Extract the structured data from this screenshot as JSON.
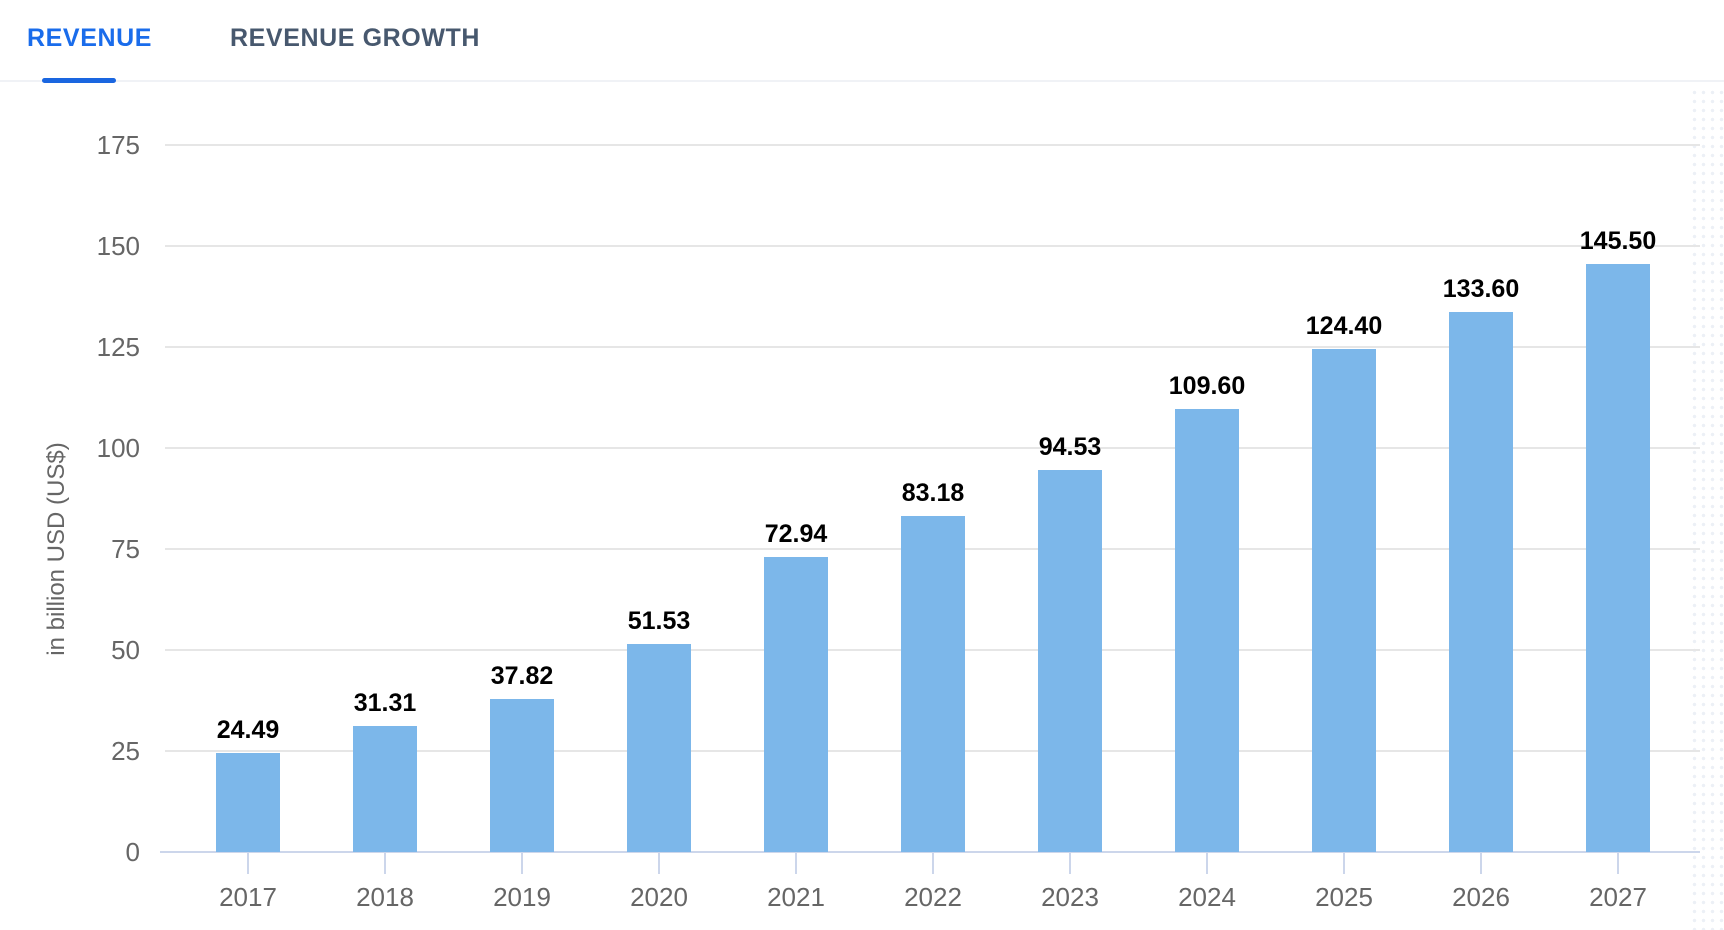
{
  "tabs": [
    {
      "label": "REVENUE",
      "active": true
    },
    {
      "label": "REVENUE GROWTH",
      "active": false
    }
  ],
  "chart_data": {
    "type": "bar",
    "categories": [
      "2017",
      "2018",
      "2019",
      "2020",
      "2021",
      "2022",
      "2023",
      "2024",
      "2025",
      "2026",
      "2027"
    ],
    "values": [
      24.49,
      31.31,
      37.82,
      51.53,
      72.94,
      83.18,
      94.53,
      109.6,
      124.4,
      133.6,
      145.5
    ],
    "value_labels": [
      "24.49",
      "31.31",
      "37.82",
      "51.53",
      "72.94",
      "83.18",
      "94.53",
      "109.60",
      "124.40",
      "133.60",
      "145.50"
    ],
    "ylabel": "in billion USD (US$)",
    "ylim": [
      0,
      175
    ],
    "yticks": [
      0,
      25,
      50,
      75,
      100,
      125,
      150,
      175
    ],
    "grid": true,
    "legend": "none"
  },
  "colors": {
    "bar": "#7cb7ea",
    "axis_line": "#ccd6eb",
    "gridline": "#e6e6e6",
    "axis_label": "#666666",
    "data_label": "#000000",
    "tab_active": "#1a6ceb",
    "tab_inactive": "#47586e"
  }
}
